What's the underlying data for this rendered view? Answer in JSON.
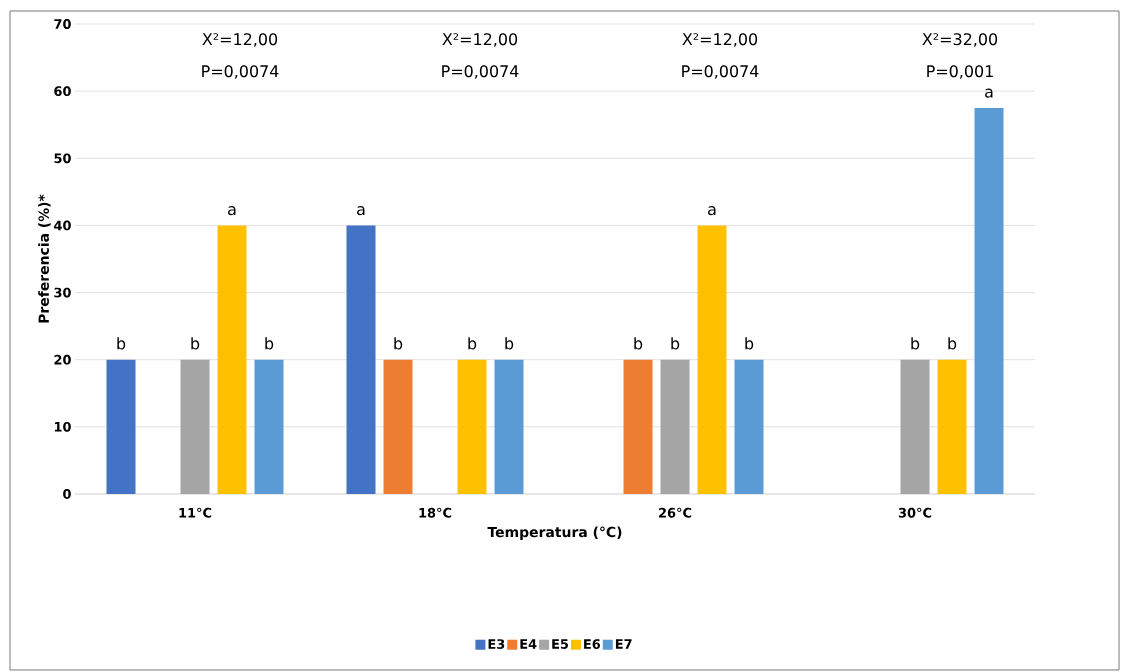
{
  "chart_data": {
    "type": "bar",
    "xlabel": "Temperatura (°C)",
    "ylabel": "Preferencia (%)*",
    "categories": [
      "11°C",
      "18°C",
      "26°C",
      "30°C"
    ],
    "series": [
      {
        "name": "E3",
        "color": "#4472c4",
        "values": [
          20,
          40,
          null,
          null
        ],
        "value_labels": [
          "b",
          "a",
          null,
          null
        ]
      },
      {
        "name": "E4",
        "color": "#ed7d31",
        "values": [
          null,
          20,
          20,
          null
        ],
        "value_labels": [
          null,
          "b",
          "b",
          null
        ]
      },
      {
        "name": "E5",
        "color": "#a5a5a5",
        "values": [
          20,
          null,
          20,
          20
        ],
        "value_labels": [
          "b",
          null,
          "b",
          "b"
        ]
      },
      {
        "name": "E6",
        "color": "#ffc000",
        "values": [
          40,
          20,
          40,
          20
        ],
        "value_labels": [
          "a",
          "b",
          "a",
          "b"
        ]
      },
      {
        "name": "E7",
        "color": "#5b9bd5",
        "values": [
          20,
          20,
          20,
          57.5
        ],
        "value_labels": [
          "b",
          "b",
          "b",
          "a"
        ]
      }
    ],
    "ylim": [
      0,
      70
    ],
    "yticks": [
      0,
      10,
      20,
      30,
      40,
      50,
      60,
      70
    ],
    "grid": "y",
    "legend": "bottom",
    "annotations": [
      "X²=12,00",
      "P=0,0074",
      "X²=12,00",
      "P=0,0074",
      "X²=12,00",
      "P=0,0074",
      "X²=32,00",
      "P=0,001"
    ]
  }
}
